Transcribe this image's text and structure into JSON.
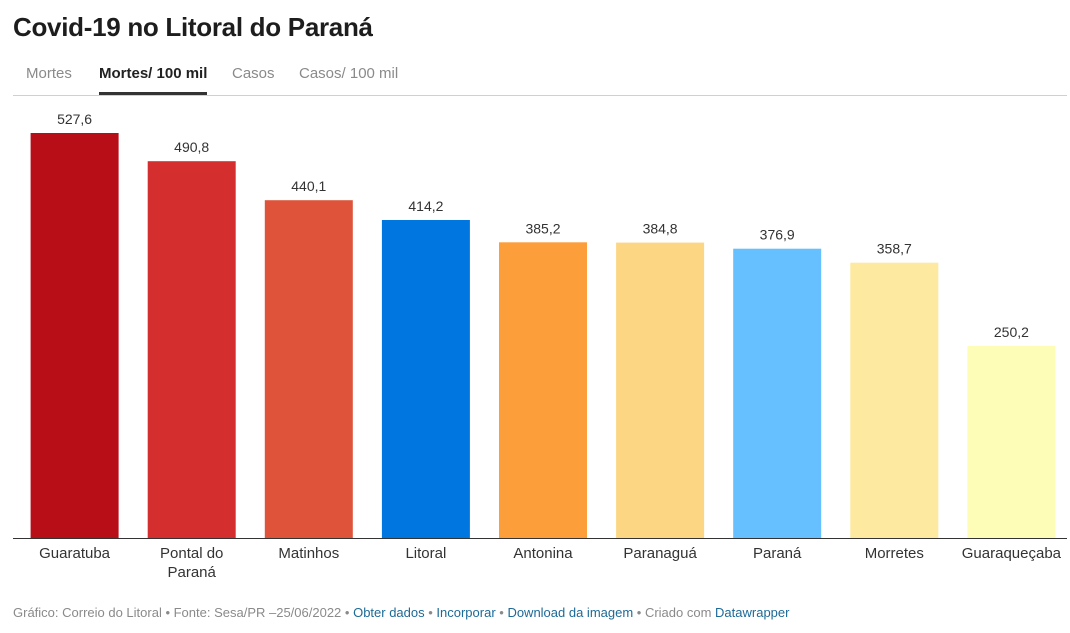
{
  "title": "Covid-19 no Litoral do Paraná",
  "tabs": [
    {
      "label": "Mortes",
      "active": false
    },
    {
      "label": "Mortes/ 100 mil",
      "active": true
    },
    {
      "label": "Casos",
      "active": false
    },
    {
      "label": "Casos/ 100 mil",
      "active": false
    }
  ],
  "chart_data": {
    "type": "bar",
    "categories": [
      "Guaratuba",
      "Pontal do Paraná",
      "Matinhos",
      "Litoral",
      "Antonina",
      "Paranaguá",
      "Paraná",
      "Morretes",
      "Guaraqueçaba"
    ],
    "category_lines": [
      [
        "Guaratuba"
      ],
      [
        "Pontal do",
        "Paraná"
      ],
      [
        "Matinhos"
      ],
      [
        "Litoral"
      ],
      [
        "Antonina"
      ],
      [
        "Paranaguá"
      ],
      [
        "Paraná"
      ],
      [
        "Morretes"
      ],
      [
        "Guaraqueçaba"
      ]
    ],
    "values": [
      527.6,
      490.8,
      440.1,
      414.2,
      385.2,
      384.8,
      376.9,
      358.7,
      250.2
    ],
    "value_labels": [
      "527,6",
      "490,8",
      "440,1",
      "414,2",
      "385,2",
      "384,8",
      "376,9",
      "358,7",
      "250,2"
    ],
    "colors": [
      "#b80e17",
      "#d42f2e",
      "#de5339",
      "#0077e0",
      "#fc9e3a",
      "#fcd683",
      "#66bfff",
      "#fdeaa0",
      "#fefdb7"
    ],
    "title": "Covid-19 no Litoral do Paraná",
    "ylim": [
      0,
      527.6
    ],
    "grid": false,
    "legend": "none"
  },
  "footer": {
    "source": "Gráfico: Correio do Litoral • Fonte: Sesa/PR –25/06/2022 • ",
    "get_data": "Obter dados",
    "sep1": " • ",
    "embed": "Incorporar",
    "sep2": " • ",
    "download": "Download da imagem",
    "sep3": " • Criado com ",
    "datawrapper": "Datawrapper"
  }
}
